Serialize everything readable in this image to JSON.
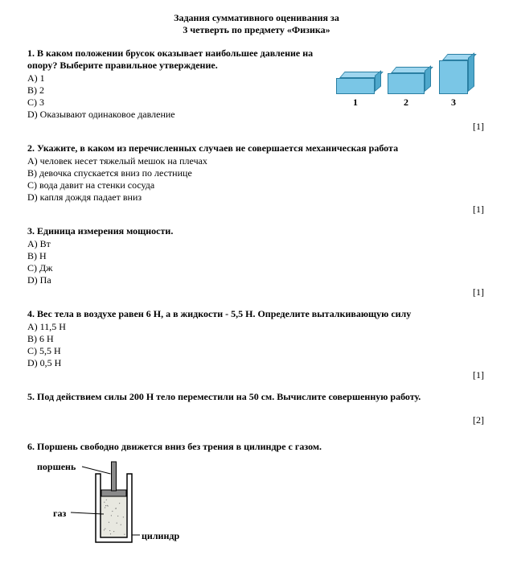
{
  "header": {
    "line1": "Задания суммативного оценивания за",
    "line2": "3 четверть по предмету «Физика»"
  },
  "q1": {
    "text": "1. В каком положении брусок оказывает наибольшее давление на опору? Выберите правильное утверждение.",
    "opts": [
      "A) 1",
      "B) 2",
      "C) 3",
      "D) Оказывают одинаковое давление"
    ],
    "score": "[1]",
    "bars": {
      "bar_fill": "#7ac6e6",
      "bar_top": "#9fd6ef",
      "bar_side": "#4fa8cc",
      "border": "#2a7fa3",
      "labels": [
        "1",
        "2",
        "3"
      ],
      "heights": [
        20,
        26,
        42
      ],
      "widths": [
        48,
        46,
        36
      ],
      "left_positions": [
        14,
        78,
        142
      ]
    }
  },
  "q2": {
    "text": "2. Укажите, в каком из перечисленных случаев не совершается механическая работа",
    "opts": [
      "A) человек несет тяжелый мешок на плечах",
      "B) девочка спускается вниз по лестнице",
      "C) вода давит на стенки сосуда",
      "D) капля дождя падает вниз"
    ],
    "score": "[1]"
  },
  "q3": {
    "text": "3. Единица измерения мощности.",
    "opts": [
      "A) Вт",
      "B) Н",
      "C) Дж",
      "D) Па"
    ],
    "score": "[1]"
  },
  "q4": {
    "text": "4. Вес тела в воздухе равен 6 Н, а в жидкости - 5,5 Н. Определите выталкивающую силу",
    "opts": [
      "A) 11,5 Н",
      "B) 6 Н",
      "C) 5,5 Н",
      "D) 0,5 Н"
    ],
    "score": "[1]"
  },
  "q5": {
    "text": "5. Под действием силы 200 Н тело переместили на 50 см. Вычислите совершенную работу.",
    "score": "[2]"
  },
  "q6": {
    "text": "6. Поршень свободно движется вниз без трения в цилиндре с газом.",
    "labels": {
      "piston": "поршень",
      "gas": "газ",
      "cylinder": "цилиндр"
    },
    "diagram": {
      "outer_stroke": "#000000",
      "piston_fill": "#8a8a8a",
      "rod_fill": "#8a8a8a",
      "gas_fill": "#e8e8e0",
      "line_stroke": "#000000"
    }
  }
}
